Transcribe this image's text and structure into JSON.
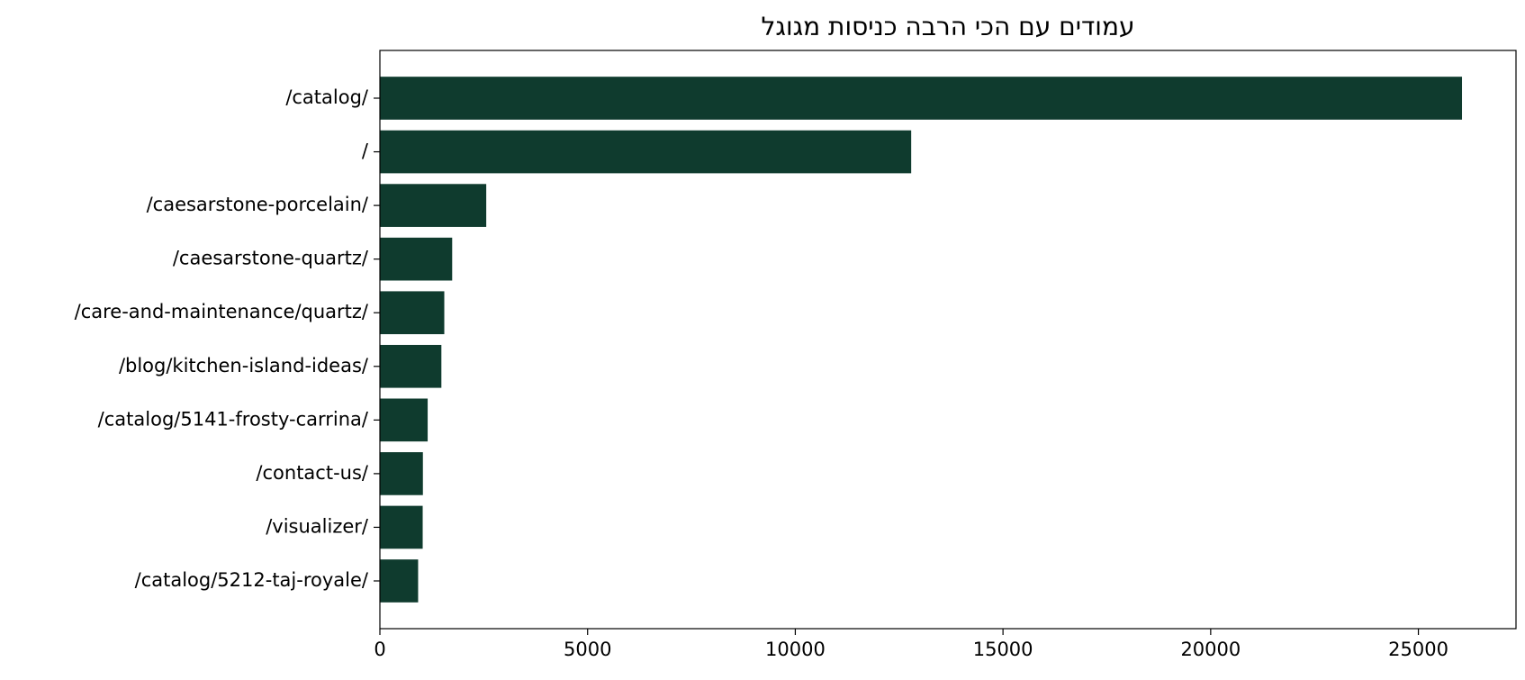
{
  "chart_data": {
    "type": "barh",
    "title": "עמודים עם הכי הרבה כניסות מגוגל",
    "categories": [
      "/catalog/",
      "/",
      "/caesarstone-porcelain/",
      "/caesarstone-quartz/",
      "/care-and-maintenance/quartz/",
      "/blog/kitchen-island-ideas/",
      "/catalog/5141-frosty-carrina/",
      "/contact-us/",
      "/visualizer/",
      "/catalog/5212-taj-royale/"
    ],
    "values": [
      26050,
      12790,
      2560,
      1740,
      1550,
      1480,
      1150,
      1035,
      1030,
      920
    ],
    "color": "#0f3b2e",
    "xlim": [
      0,
      27350
    ],
    "xticks": [
      0,
      5000,
      10000,
      15000,
      20000,
      25000
    ]
  }
}
